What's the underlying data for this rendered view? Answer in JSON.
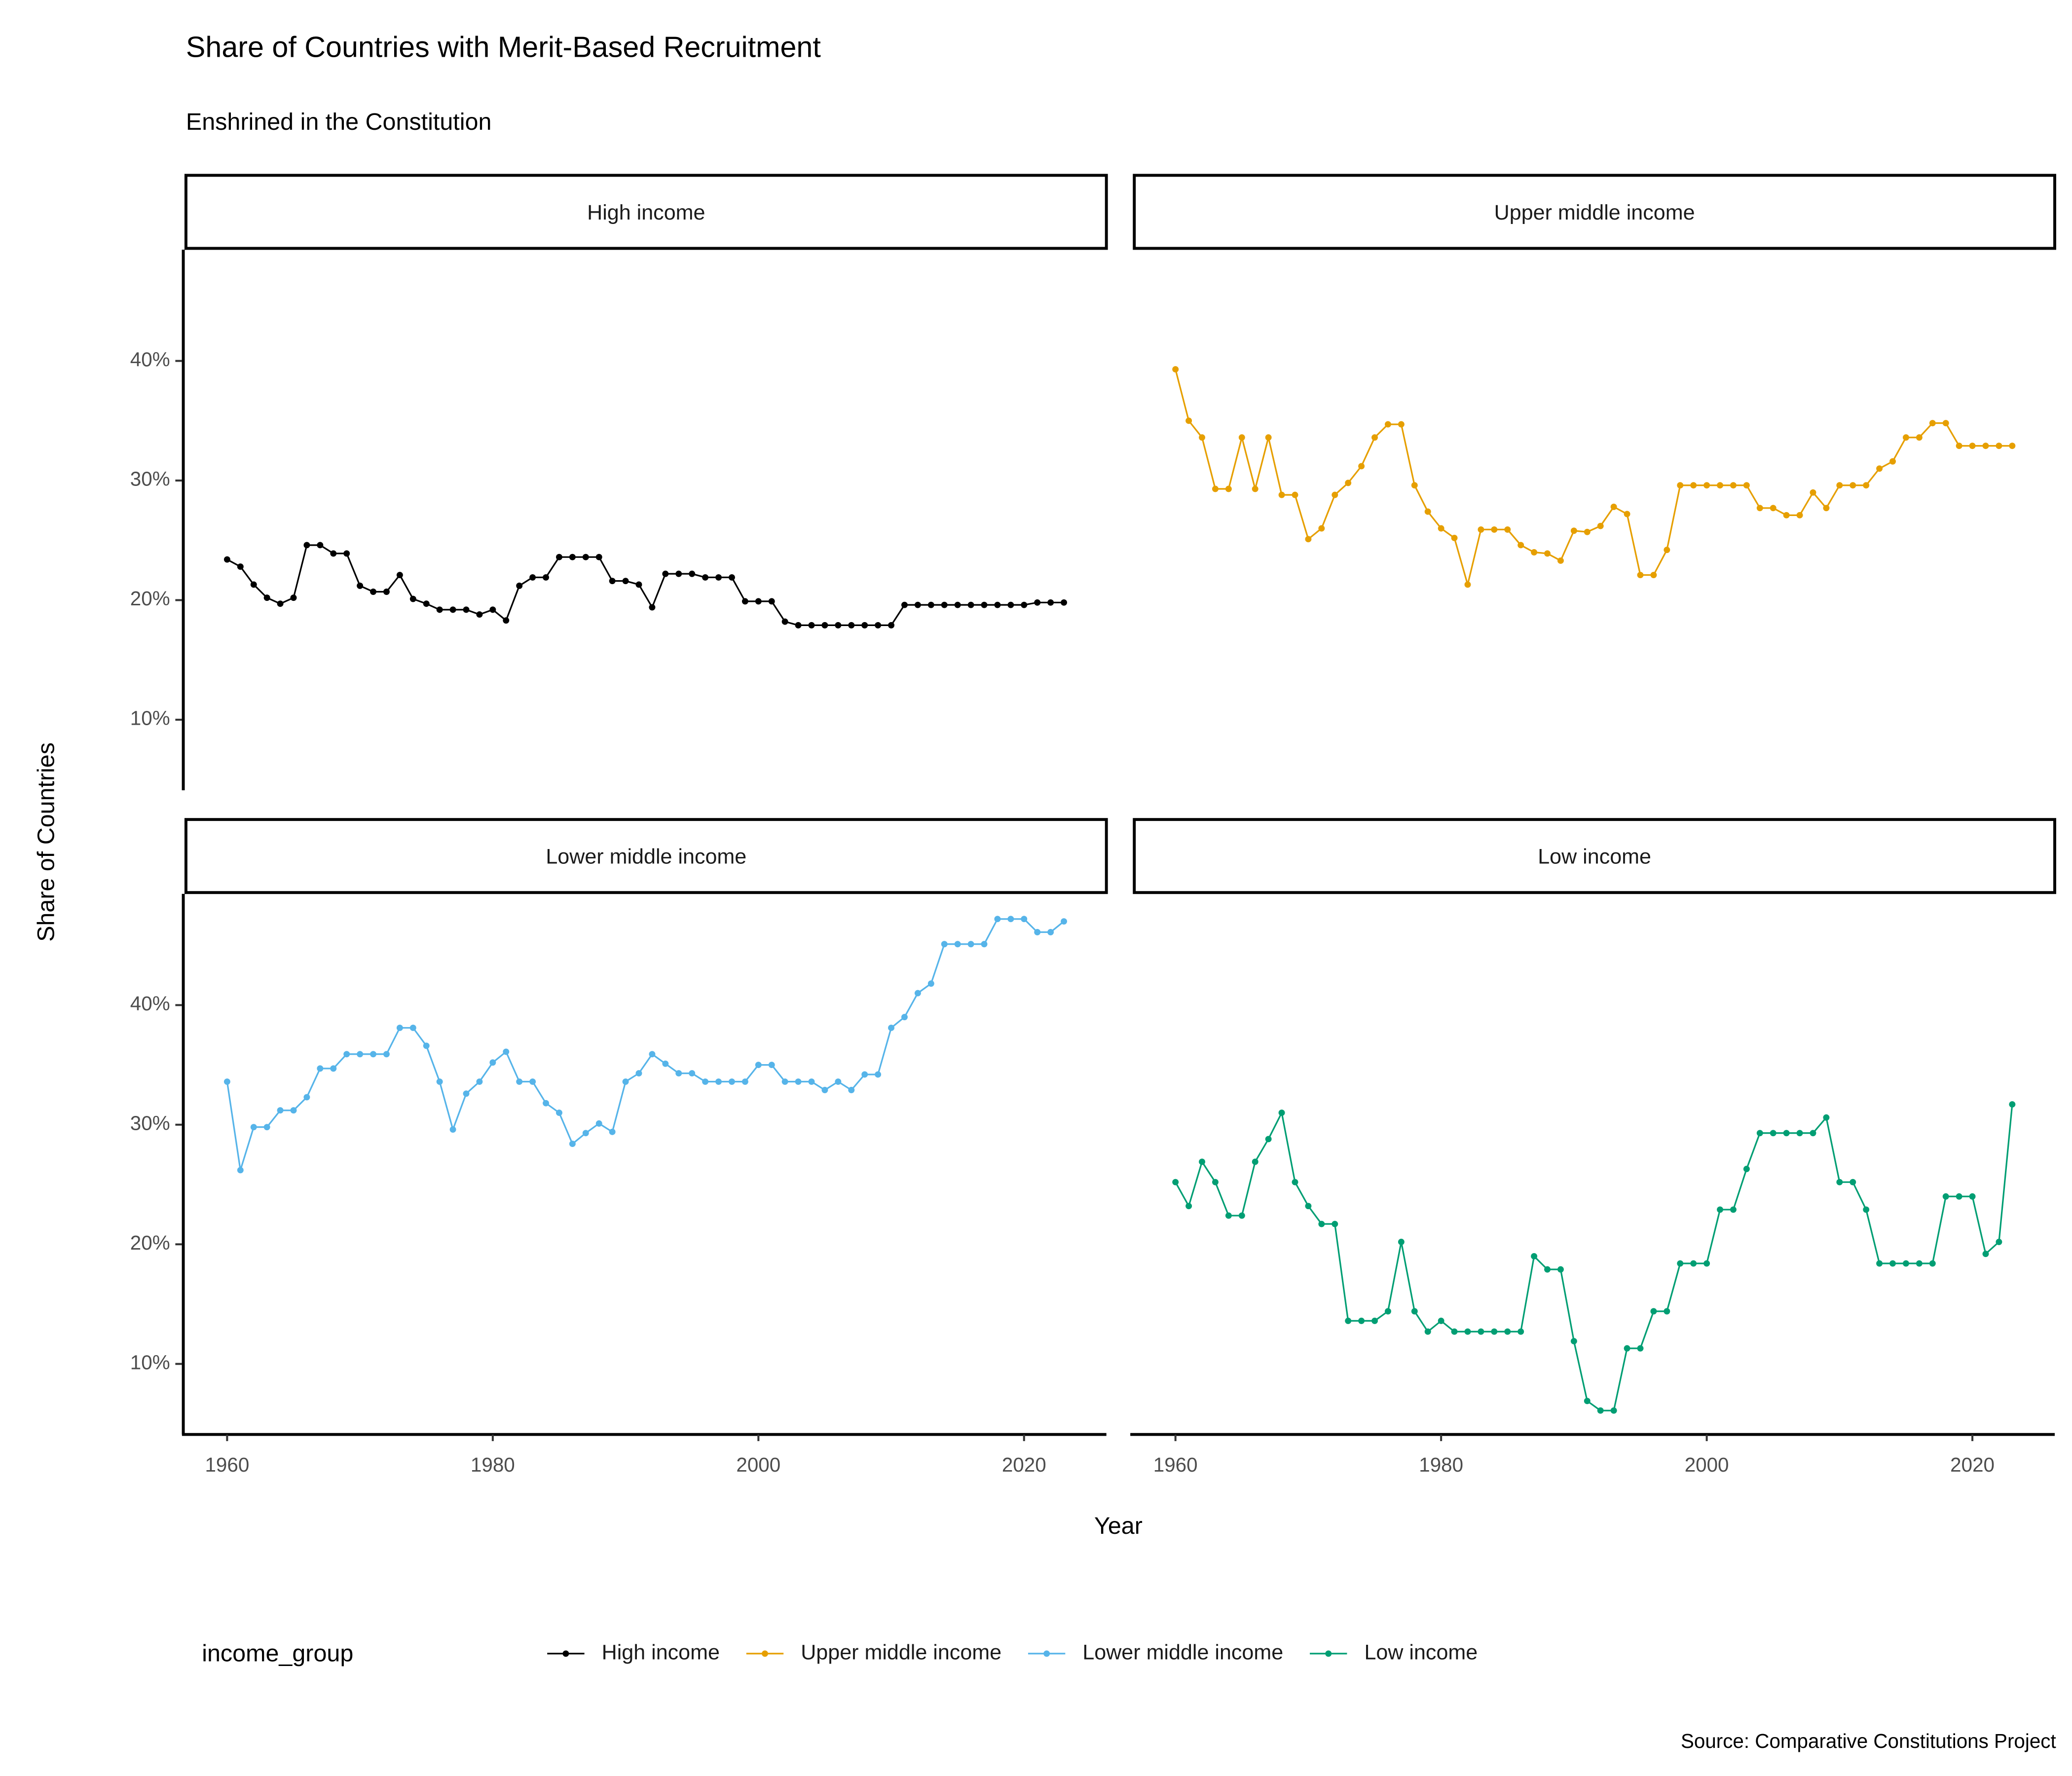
{
  "chart_data": {
    "type": "line",
    "title": "Share of Countries with Merit-Based Recruitment",
    "subtitle": "Enshrined in the Constitution",
    "x_label": "Year",
    "y_label": "Share of Countries",
    "legend_title": "income_group",
    "caption": "Source: Comparative Constitutions Project",
    "x": [
      1960,
      1961,
      1962,
      1963,
      1964,
      1965,
      1966,
      1967,
      1968,
      1969,
      1970,
      1971,
      1972,
      1973,
      1974,
      1975,
      1976,
      1977,
      1978,
      1979,
      1980,
      1981,
      1982,
      1983,
      1984,
      1985,
      1986,
      1987,
      1988,
      1989,
      1990,
      1991,
      1992,
      1993,
      1994,
      1995,
      1996,
      1997,
      1998,
      1999,
      2000,
      2001,
      2002,
      2003,
      2004,
      2005,
      2006,
      2007,
      2008,
      2009,
      2010,
      2011,
      2012,
      2013,
      2014,
      2015,
      2016,
      2017,
      2018,
      2019,
      2020,
      2021,
      2022,
      2023
    ],
    "xlim": [
      1956.6,
      2026.2
    ],
    "xticks": [
      1960,
      1980,
      2000,
      2020
    ],
    "ylim": [
      4.1,
      49.3
    ],
    "yticks": [
      {
        "value": 10,
        "label": "10%"
      },
      {
        "value": 20,
        "label": "20%"
      },
      {
        "value": 30,
        "label": "30%"
      },
      {
        "value": 40,
        "label": "40%"
      }
    ],
    "series": [
      {
        "name": "High income",
        "color": "#000000",
        "values": [
          23.4,
          22.8,
          21.3,
          20.2,
          19.7,
          20.2,
          24.6,
          24.6,
          23.9,
          23.9,
          21.2,
          20.7,
          20.7,
          22.1,
          20.1,
          19.7,
          19.2,
          19.2,
          19.2,
          18.8,
          19.2,
          18.3,
          21.2,
          21.9,
          21.9,
          23.6,
          23.6,
          23.6,
          23.6,
          21.6,
          21.6,
          21.3,
          19.4,
          22.2,
          22.2,
          22.2,
          21.9,
          21.9,
          21.9,
          19.9,
          19.9,
          19.9,
          18.2,
          17.9,
          17.9,
          17.9,
          17.9,
          17.9,
          17.9,
          17.9,
          17.9,
          19.6,
          19.6,
          19.6,
          19.6,
          19.6,
          19.6,
          19.6,
          19.6,
          19.6,
          19.6,
          19.8,
          19.8,
          19.8
        ]
      },
      {
        "name": "Upper middle income",
        "color": "#E69F00",
        "values": [
          39.3,
          35.0,
          33.6,
          29.3,
          29.3,
          33.6,
          29.3,
          33.6,
          28.8,
          28.8,
          25.1,
          26.0,
          28.8,
          29.8,
          31.2,
          33.6,
          34.7,
          34.7,
          29.6,
          27.4,
          26.0,
          25.2,
          21.3,
          25.9,
          25.9,
          25.9,
          24.6,
          24.0,
          23.9,
          23.3,
          25.8,
          25.7,
          26.2,
          27.8,
          27.2,
          22.1,
          22.1,
          24.2,
          29.6,
          29.6,
          29.6,
          29.6,
          29.6,
          29.6,
          27.7,
          27.7,
          27.1,
          27.1,
          29.0,
          27.7,
          29.6,
          29.6,
          29.6,
          31.0,
          31.6,
          33.6,
          33.6,
          34.8,
          34.8,
          32.9,
          32.9,
          32.9,
          32.9,
          32.9
        ]
      },
      {
        "name": "Lower middle income",
        "color": "#56B4E9",
        "values": [
          33.6,
          26.2,
          29.8,
          29.8,
          31.2,
          31.2,
          32.3,
          34.7,
          34.7,
          35.9,
          35.9,
          35.9,
          35.9,
          38.1,
          38.1,
          36.6,
          33.6,
          29.6,
          32.6,
          33.6,
          35.2,
          36.1,
          33.6,
          33.6,
          31.8,
          31.0,
          28.4,
          29.3,
          30.1,
          29.4,
          33.6,
          34.3,
          35.9,
          35.1,
          34.3,
          34.3,
          33.6,
          33.6,
          33.6,
          33.6,
          35.0,
          35.0,
          33.6,
          33.6,
          33.6,
          32.9,
          33.6,
          32.9,
          34.2,
          34.2,
          38.1,
          39.0,
          41.0,
          41.8,
          45.1,
          45.1,
          45.1,
          45.1,
          47.2,
          47.2,
          47.2,
          46.1,
          46.1,
          47.0
        ]
      },
      {
        "name": "Low income",
        "color": "#009E73",
        "values": [
          25.2,
          23.2,
          26.9,
          25.2,
          22.4,
          22.4,
          26.9,
          28.8,
          31.0,
          25.2,
          23.2,
          21.7,
          21.7,
          13.6,
          13.6,
          13.6,
          14.4,
          20.2,
          14.4,
          12.7,
          13.6,
          12.7,
          12.7,
          12.7,
          12.7,
          12.7,
          12.7,
          19.0,
          17.9,
          17.9,
          11.9,
          6.9,
          6.1,
          6.1,
          11.3,
          11.3,
          14.4,
          14.4,
          18.4,
          18.4,
          18.4,
          22.9,
          22.9,
          26.3,
          29.3,
          29.3,
          29.3,
          29.3,
          29.3,
          30.6,
          25.2,
          25.2,
          22.9,
          18.4,
          18.4,
          18.4,
          18.4,
          18.4,
          24.0,
          24.0,
          24.0,
          19.2,
          20.2,
          31.7
        ]
      }
    ]
  }
}
